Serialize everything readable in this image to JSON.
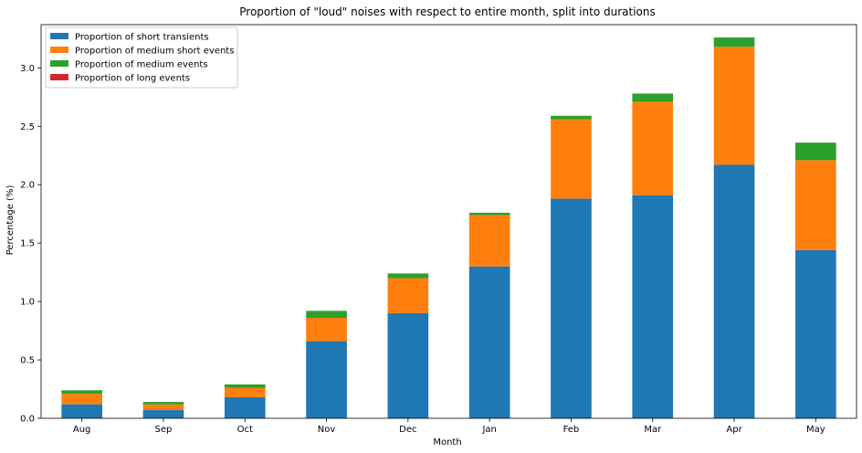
{
  "chart_data": {
    "type": "bar",
    "stacked": true,
    "title": "Proportion of \"loud\" noises with respect to entire month, split into durations",
    "xlabel": "Month",
    "ylabel": "Percentage (%)",
    "categories": [
      "Aug",
      "Sep",
      "Oct",
      "Nov",
      "Dec",
      "Jan",
      "Feb",
      "Mar",
      "Apr",
      "May"
    ],
    "ylim": [
      0,
      3.37
    ],
    "yticks": [
      0.0,
      0.5,
      1.0,
      1.5,
      2.0,
      2.5,
      3.0
    ],
    "ytick_labels": [
      "0.0",
      "0.5",
      "1.0",
      "1.5",
      "2.0",
      "2.5",
      "3.0"
    ],
    "grid": false,
    "legend_position": "top-left",
    "series": [
      {
        "name": "Proportion of short transients",
        "color": "#1f77b4",
        "values": [
          0.12,
          0.07,
          0.18,
          0.66,
          0.9,
          1.3,
          1.88,
          1.91,
          2.17,
          1.44
        ]
      },
      {
        "name": "Proportion of medium short events",
        "color": "#ff7f0e",
        "values": [
          0.09,
          0.05,
          0.08,
          0.2,
          0.3,
          0.44,
          0.68,
          0.8,
          1.01,
          0.77
        ]
      },
      {
        "name": "Proportion of medium events",
        "color": "#2ca02c",
        "values": [
          0.03,
          0.02,
          0.03,
          0.06,
          0.04,
          0.02,
          0.03,
          0.07,
          0.08,
          0.15
        ]
      },
      {
        "name": "Proportion of long events",
        "color": "#d62728",
        "values": [
          0,
          0,
          0,
          0,
          0,
          0,
          0,
          0,
          0,
          0
        ]
      }
    ]
  }
}
